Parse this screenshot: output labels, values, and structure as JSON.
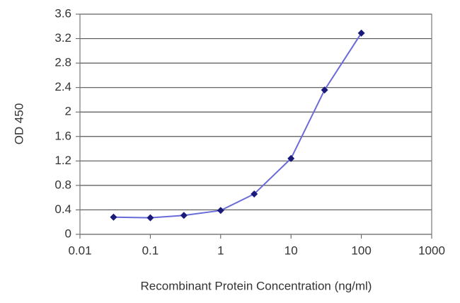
{
  "chart_data": {
    "type": "line",
    "x_label": "Recombinant Protein Concentration (ng/ml)",
    "y_label": "OD 450",
    "xscale": "log",
    "grid": true,
    "xlim": [
      0.01,
      1000
    ],
    "xticks": [
      0.01,
      0.1,
      1,
      10,
      100,
      1000
    ],
    "ylim": [
      0,
      3.6
    ],
    "yticks": [
      0,
      0.4,
      0.8,
      1.2,
      1.6,
      2,
      2.4,
      2.8,
      3.2,
      3.6
    ],
    "x": [
      0.03,
      0.1,
      0.3,
      1,
      3,
      10,
      30,
      100
    ],
    "series": [
      {
        "color": "#6a6ad8",
        "marker_color": "#1a1a7a",
        "values": [
          0.28,
          0.27,
          0.31,
          0.39,
          0.66,
          1.24,
          2.36,
          3.29
        ]
      }
    ]
  }
}
